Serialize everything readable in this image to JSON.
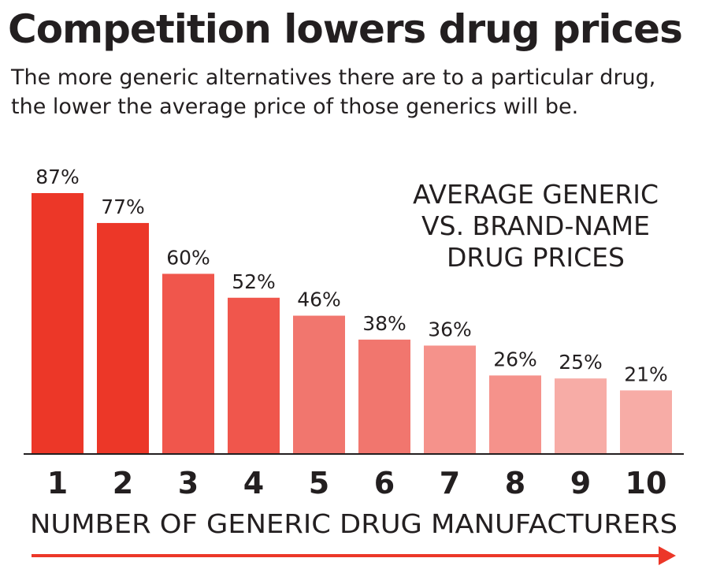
{
  "header": {
    "title": "Competition lowers drug prices",
    "subtitle_lines": [
      "The more generic alternatives there are to a particular drug,",
      "the lower the average price of those generics will be."
    ]
  },
  "chart_data": {
    "type": "bar",
    "title": "AVERAGE GENERIC VS. BRAND-NAME DRUG PRICES",
    "title_lines": [
      "AVERAGE GENERIC",
      "VS. BRAND-NAME",
      "DRUG PRICES"
    ],
    "categories": [
      "1",
      "2",
      "3",
      "4",
      "5",
      "6",
      "7",
      "8",
      "9",
      "10"
    ],
    "values": [
      87,
      77,
      60,
      52,
      46,
      38,
      36,
      26,
      25,
      21
    ],
    "data_labels": [
      "87%",
      "77%",
      "60%",
      "52%",
      "46%",
      "38%",
      "36%",
      "26%",
      "25%",
      "21%"
    ],
    "colors": [
      "#ec3728",
      "#ec3728",
      "#f0564c",
      "#f0564c",
      "#f1766e",
      "#f1766e",
      "#f5928b",
      "#f5928b",
      "#f7aca6",
      "#f7aca6"
    ],
    "xlabel": "NUMBER OF GENERIC DRUG MANUFACTURERS",
    "ylabel": "",
    "ylim": [
      0,
      87
    ],
    "grid": false,
    "legend": "none",
    "arrow_color": "#ec3728"
  }
}
